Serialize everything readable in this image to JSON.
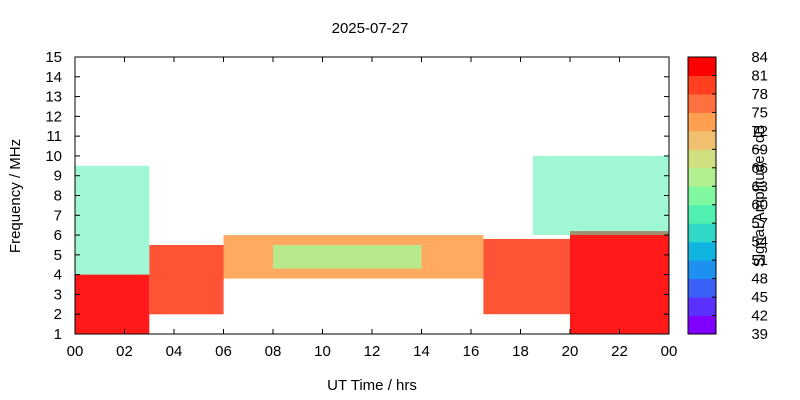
{
  "chart_data": {
    "type": "heatmap",
    "title": "2025-07-27",
    "xlabel": "UT Time / hrs",
    "ylabel": "Frequency / MHz",
    "colorbar_label": "Signal Amplitude / dB",
    "xlim": [
      0,
      24
    ],
    "ylim": [
      1,
      15
    ],
    "x_tick_labels": [
      "00",
      "02",
      "04",
      "06",
      "08",
      "10",
      "12",
      "14",
      "16",
      "18",
      "20",
      "22",
      "00"
    ],
    "y_tick_labels": [
      "1",
      "2",
      "3",
      "4",
      "5",
      "6",
      "7",
      "8",
      "9",
      "10",
      "11",
      "12",
      "13",
      "14",
      "15"
    ],
    "colorbar_tick_labels": [
      "84",
      "81",
      "78",
      "75",
      "72",
      "69",
      "66",
      "63",
      "60",
      "57",
      "54",
      "51",
      "48",
      "45",
      "42",
      "39"
    ],
    "colorbar_range": [
      39,
      84
    ],
    "colorbar_palette": [
      "#7f00ff",
      "#5a30ff",
      "#3a60f8",
      "#1e90f0",
      "#10b4e0",
      "#30d8c8",
      "#50f0b0",
      "#80f8a0",
      "#b0f090",
      "#d0e080",
      "#f0c070",
      "#ffa050",
      "#ff7040",
      "#ff4020",
      "#ff0000"
    ],
    "grid": false,
    "regions": [
      {
        "x_start": 0,
        "x_end": 3,
        "f_low": 1,
        "f_high": 4,
        "value": 81
      },
      {
        "x_start": 3,
        "x_end": 6,
        "f_low": 2,
        "f_high": 5.5,
        "value": 78
      },
      {
        "x_start": 6,
        "x_end": 16.5,
        "f_low": 3.8,
        "f_high": 6,
        "value": 72
      },
      {
        "x_start": 8,
        "x_end": 14,
        "f_low": 4.3,
        "f_high": 5.5,
        "value": 63
      },
      {
        "x_start": 16.5,
        "x_end": 20,
        "f_low": 2,
        "f_high": 5.8,
        "value": 78
      },
      {
        "x_start": 20,
        "x_end": 24,
        "f_low": 1,
        "f_high": 6.2,
        "value": 81
      },
      {
        "x_start": 0,
        "x_end": 3,
        "f_low": 4,
        "f_high": 9.5,
        "value": 57
      },
      {
        "x_start": 18.5,
        "x_end": 24,
        "f_low": 6,
        "f_high": 10,
        "value": 57
      }
    ]
  }
}
